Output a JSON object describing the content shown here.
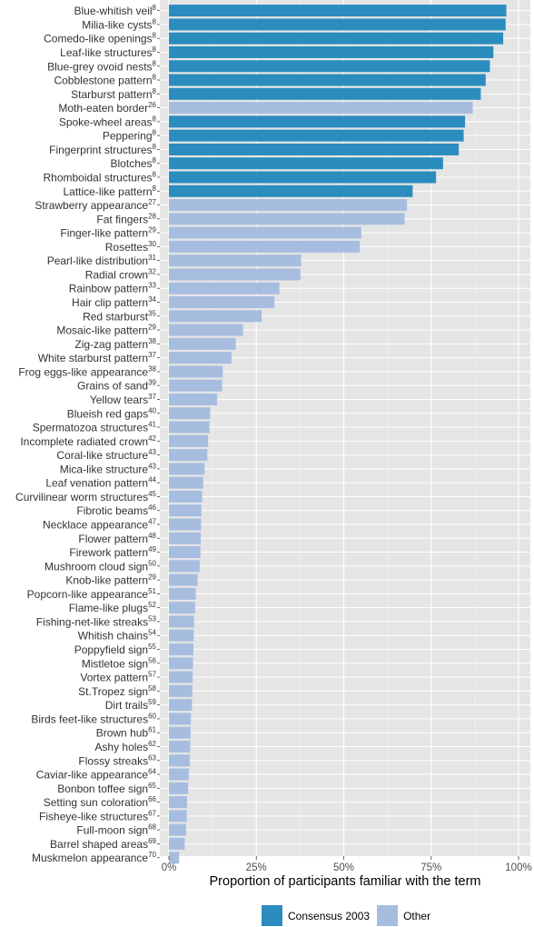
{
  "chart_data": {
    "type": "bar",
    "orientation": "horizontal",
    "xlabel": "Proportion of participants familiar with the term",
    "xlim": [
      0,
      100
    ],
    "xticks": [
      "0%",
      "25%",
      "50%",
      "75%",
      "100%"
    ],
    "grid": true,
    "legend_position": "bottom",
    "series_colors": {
      "Consensus 2003": "#2b8cbe",
      "Other": "#a7bde0"
    },
    "bars": [
      {
        "label": "Blue-whitish veil",
        "ref": "8",
        "value": 96.5,
        "group": "Consensus 2003"
      },
      {
        "label": "Milia-like cysts",
        "ref": "8",
        "value": 96.3,
        "group": "Consensus 2003"
      },
      {
        "label": "Comedo-like openings",
        "ref": "8",
        "value": 95.6,
        "group": "Consensus 2003"
      },
      {
        "label": "Leaf-like structures",
        "ref": "8",
        "value": 92.8,
        "group": "Consensus 2003"
      },
      {
        "label": "Blue-grey ovoid nests",
        "ref": "8",
        "value": 91.8,
        "group": "Consensus 2003"
      },
      {
        "label": "Cobblestone pattern",
        "ref": "8",
        "value": 90.6,
        "group": "Consensus 2003"
      },
      {
        "label": "Starburst pattern",
        "ref": "8",
        "value": 89.2,
        "group": "Consensus 2003"
      },
      {
        "label": "Moth-eaten border",
        "ref": "26",
        "value": 86.9,
        "group": "Other"
      },
      {
        "label": "Spoke-wheel areas",
        "ref": "8",
        "value": 84.7,
        "group": "Consensus 2003"
      },
      {
        "label": "Peppering",
        "ref": "8",
        "value": 84.3,
        "group": "Consensus 2003"
      },
      {
        "label": "Fingerprint structures",
        "ref": "8",
        "value": 82.9,
        "group": "Consensus 2003"
      },
      {
        "label": "Blotches",
        "ref": "8",
        "value": 78.4,
        "group": "Consensus 2003"
      },
      {
        "label": "Rhomboidal structures",
        "ref": "8",
        "value": 76.4,
        "group": "Consensus 2003"
      },
      {
        "label": "Lattice-like pattern",
        "ref": "8",
        "value": 69.7,
        "group": "Consensus 2003"
      },
      {
        "label": "Strawberry appearance",
        "ref": "27",
        "value": 68.1,
        "group": "Other"
      },
      {
        "label": "Fat fingers",
        "ref": "28",
        "value": 67.4,
        "group": "Other"
      },
      {
        "label": "Finger-like pattern",
        "ref": "29",
        "value": 55.0,
        "group": "Other"
      },
      {
        "label": "Rosettes",
        "ref": "30",
        "value": 54.6,
        "group": "Other"
      },
      {
        "label": "Pearl-like distribution",
        "ref": "31",
        "value": 37.8,
        "group": "Other"
      },
      {
        "label": "Radial crown",
        "ref": "32",
        "value": 37.6,
        "group": "Other"
      },
      {
        "label": "Rainbow pattern",
        "ref": "33",
        "value": 31.6,
        "group": "Other"
      },
      {
        "label": "Hair clip pattern",
        "ref": "34",
        "value": 30.2,
        "group": "Other"
      },
      {
        "label": "Red starburst",
        "ref": "35",
        "value": 26.5,
        "group": "Other"
      },
      {
        "label": "Mosaic-like pattern",
        "ref": "29",
        "value": 21.2,
        "group": "Other"
      },
      {
        "label": "Zig-zag pattern",
        "ref": "38",
        "value": 19.1,
        "group": "Other"
      },
      {
        "label": "White starburst pattern",
        "ref": "37",
        "value": 17.9,
        "group": "Other"
      },
      {
        "label": "Frog eggs-like appearance",
        "ref": "38",
        "value": 15.4,
        "group": "Other"
      },
      {
        "label": "Grains of sand",
        "ref": "39",
        "value": 15.2,
        "group": "Other"
      },
      {
        "label": "Yellow tears",
        "ref": "37",
        "value": 13.8,
        "group": "Other"
      },
      {
        "label": "Blueish red gaps",
        "ref": "40",
        "value": 11.8,
        "group": "Other"
      },
      {
        "label": "Spermatozoa structures",
        "ref": "41",
        "value": 11.6,
        "group": "Other"
      },
      {
        "label": "Incomplete radiated crown",
        "ref": "42",
        "value": 11.2,
        "group": "Other"
      },
      {
        "label": "Coral-like structure",
        "ref": "43",
        "value": 11.0,
        "group": "Other"
      },
      {
        "label": "Mica-like structure",
        "ref": "43",
        "value": 10.2,
        "group": "Other"
      },
      {
        "label": "Leaf venation pattern",
        "ref": "44",
        "value": 9.8,
        "group": "Other"
      },
      {
        "label": "Curvilinear worm structures",
        "ref": "45",
        "value": 9.5,
        "group": "Other"
      },
      {
        "label": "Fibrotic beams",
        "ref": "46",
        "value": 9.3,
        "group": "Other"
      },
      {
        "label": "Necklace appearance",
        "ref": "47",
        "value": 9.2,
        "group": "Other"
      },
      {
        "label": "Flower pattern",
        "ref": "48",
        "value": 9.1,
        "group": "Other"
      },
      {
        "label": "Firework pattern",
        "ref": "49",
        "value": 9.0,
        "group": "Other"
      },
      {
        "label": "Mushroom cloud sign",
        "ref": "50",
        "value": 8.8,
        "group": "Other"
      },
      {
        "label": "Knob-like pattern",
        "ref": "29",
        "value": 8.2,
        "group": "Other"
      },
      {
        "label": "Popcorn-like appearance",
        "ref": "51",
        "value": 7.7,
        "group": "Other"
      },
      {
        "label": "Flame-like plugs",
        "ref": "52",
        "value": 7.5,
        "group": "Other"
      },
      {
        "label": "Fishing-net-like streaks",
        "ref": "53",
        "value": 7.2,
        "group": "Other"
      },
      {
        "label": "Whitish chains",
        "ref": "54",
        "value": 7.1,
        "group": "Other"
      },
      {
        "label": "Poppyfield sign",
        "ref": "55",
        "value": 7.0,
        "group": "Other"
      },
      {
        "label": "Mistletoe sign",
        "ref": "56",
        "value": 6.9,
        "group": "Other"
      },
      {
        "label": "Vortex pattern",
        "ref": "57",
        "value": 6.8,
        "group": "Other"
      },
      {
        "label": "St.Tropez sign",
        "ref": "58",
        "value": 6.7,
        "group": "Other"
      },
      {
        "label": "Dirt trails",
        "ref": "59",
        "value": 6.6,
        "group": "Other"
      },
      {
        "label": "Birds feet-like structures",
        "ref": "60",
        "value": 6.3,
        "group": "Other"
      },
      {
        "label": "Brown hub",
        "ref": "61",
        "value": 6.2,
        "group": "Other"
      },
      {
        "label": "Ashy holes",
        "ref": "62",
        "value": 6.1,
        "group": "Other"
      },
      {
        "label": "Flossy streaks",
        "ref": "63",
        "value": 6.0,
        "group": "Other"
      },
      {
        "label": "Caviar-like appearance",
        "ref": "64",
        "value": 5.7,
        "group": "Other"
      },
      {
        "label": "Bonbon toffee sign",
        "ref": "65",
        "value": 5.5,
        "group": "Other"
      },
      {
        "label": "Setting sun coloration",
        "ref": "66",
        "value": 5.2,
        "group": "Other"
      },
      {
        "label": "Fisheye-like structures",
        "ref": "67",
        "value": 5.1,
        "group": "Other"
      },
      {
        "label": "Full-moon sign",
        "ref": "68",
        "value": 4.9,
        "group": "Other"
      },
      {
        "label": "Barrel shaped areas",
        "ref": "69",
        "value": 4.5,
        "group": "Other"
      },
      {
        "label": "Muskmelon appearance",
        "ref": "70",
        "value": 2.9,
        "group": "Other"
      }
    ],
    "legend": [
      {
        "name": "Consensus 2003",
        "color": "#2b8cbe"
      },
      {
        "name": "Other",
        "color": "#a7bde0"
      }
    ]
  }
}
